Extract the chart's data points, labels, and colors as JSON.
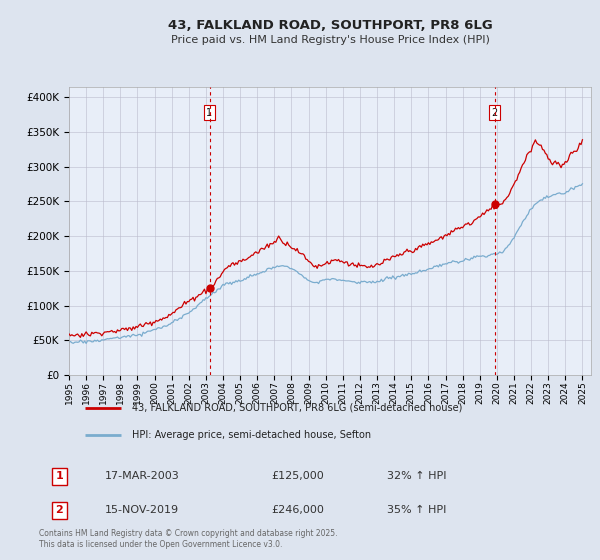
{
  "title": "43, FALKLAND ROAD, SOUTHPORT, PR8 6LG",
  "subtitle": "Price paid vs. HM Land Registry's House Price Index (HPI)",
  "ylabel_ticks": [
    "£0",
    "£50K",
    "£100K",
    "£150K",
    "£200K",
    "£250K",
    "£300K",
    "£350K",
    "£400K"
  ],
  "ytick_values": [
    0,
    50000,
    100000,
    150000,
    200000,
    250000,
    300000,
    350000,
    400000
  ],
  "ylim": [
    0,
    415000
  ],
  "xlim_start": 1995.0,
  "xlim_end": 2025.5,
  "xtick_years": [
    1995,
    1996,
    1997,
    1998,
    1999,
    2000,
    2001,
    2002,
    2003,
    2004,
    2005,
    2006,
    2007,
    2008,
    2009,
    2010,
    2011,
    2012,
    2013,
    2014,
    2015,
    2016,
    2017,
    2018,
    2019,
    2020,
    2021,
    2022,
    2023,
    2024,
    2025
  ],
  "vline1_x": 2003.21,
  "vline2_x": 2019.88,
  "sale1_label": "1",
  "sale1_date": "17-MAR-2003",
  "sale1_price": "£125,000",
  "sale1_hpi": "32% ↑ HPI",
  "sale2_label": "2",
  "sale2_date": "15-NOV-2019",
  "sale2_price": "£246,000",
  "sale2_hpi": "35% ↑ HPI",
  "red_line_color": "#cc0000",
  "blue_line_color": "#7aacce",
  "vline_color": "#cc0000",
  "background_color": "#dde4ef",
  "plot_bg_color": "#e8eef8",
  "grid_color": "#bbbbcc",
  "legend_label_red": "43, FALKLAND ROAD, SOUTHPORT, PR8 6LG (semi-detached house)",
  "legend_label_blue": "HPI: Average price, semi-detached house, Sefton",
  "footer": "Contains HM Land Registry data © Crown copyright and database right 2025.\nThis data is licensed under the Open Government Licence v3.0.",
  "marker1_x": 2003.21,
  "marker1_y": 125000,
  "marker2_x": 2019.88,
  "marker2_y": 246000
}
